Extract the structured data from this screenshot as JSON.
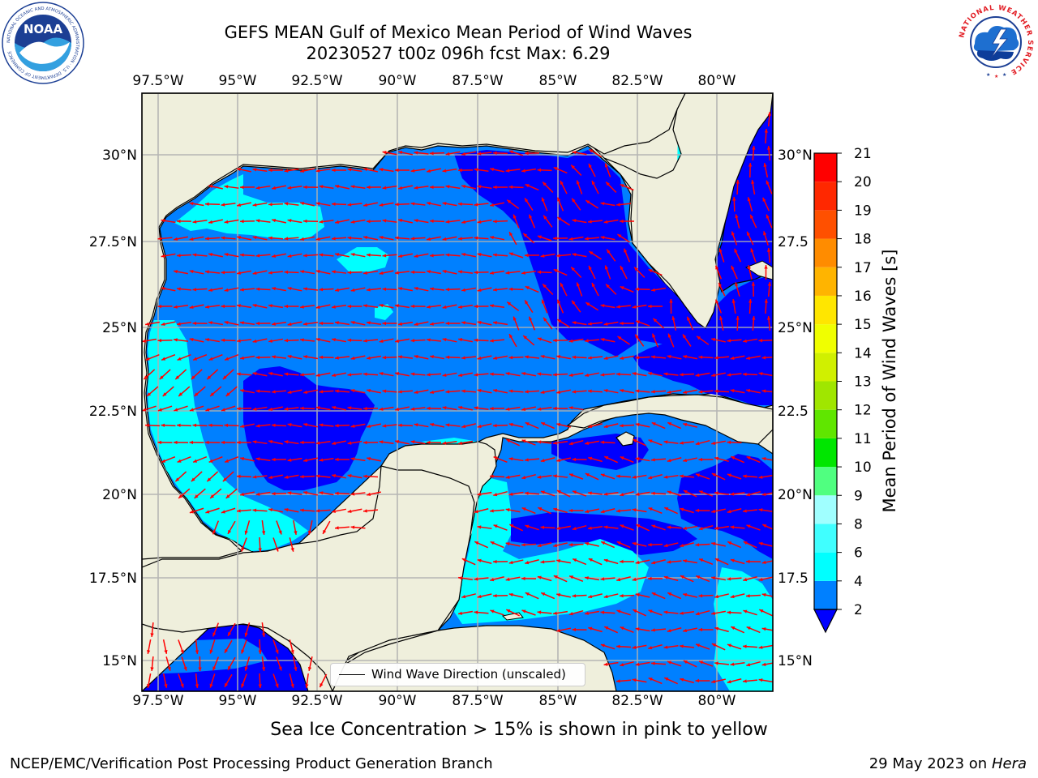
{
  "title": {
    "line1": "GEFS MEAN Gulf of Mexico Mean Period of Wind Waves",
    "line2": "20230527 t00z 096h fcst   Max: 6.29"
  },
  "logos": {
    "left": "NOAA",
    "left_ring_text": "NATIONAL OCEANIC AND ATMOSPHERIC ADMINISTRATION · U.S. DEPARTMENT OF COMMERCE",
    "right_ring_text": "NATIONAL WEATHER SERVICE"
  },
  "map": {
    "lon_labels": [
      "97.5°W",
      "95°W",
      "92.5°W",
      "90°W",
      "87.5°W",
      "85°W",
      "82.5°W",
      "80°W"
    ],
    "lat_labels": [
      "30°N",
      "27.5°N",
      "25°N",
      "22.5°N",
      "20°N",
      "17.5°N",
      "15°N"
    ],
    "lat_labels_right": [
      "30°N",
      "27.5",
      "25°N",
      "22.5",
      "20°N",
      "17.5",
      "15°N"
    ],
    "land_color": "#efefdc",
    "grid_color": "#b0b0b0",
    "arrow_color": "#ff0000",
    "legend_text": "Wind Wave Direction (unscaled)"
  },
  "colorbar": {
    "title": "Mean Period of Wind Waves [s]",
    "ticks": [
      "2",
      "4",
      "6",
      "8",
      "9",
      "10",
      "11",
      "12",
      "13",
      "14",
      "15",
      "16",
      "17",
      "18",
      "19",
      "20",
      "21"
    ],
    "colors": [
      "#0000ff",
      "#0080ff",
      "#00ffff",
      "#40ffff",
      "#a0ffff",
      "#50ff80",
      "#00e600",
      "#60e600",
      "#a0e600",
      "#d0f000",
      "#f0ff00",
      "#ffe600",
      "#ffb400",
      "#ff8c00",
      "#ff5000",
      "#ff2800",
      "#ff0000"
    ]
  },
  "notes": {
    "sea_ice": "Sea Ice Concentration > 15% is shown in pink to yellow",
    "footer_left": "NCEP/EMC/Verification Post Processing Product Generation Branch",
    "footer_date": "29 May 2023 on",
    "footer_host": "Hera"
  }
}
